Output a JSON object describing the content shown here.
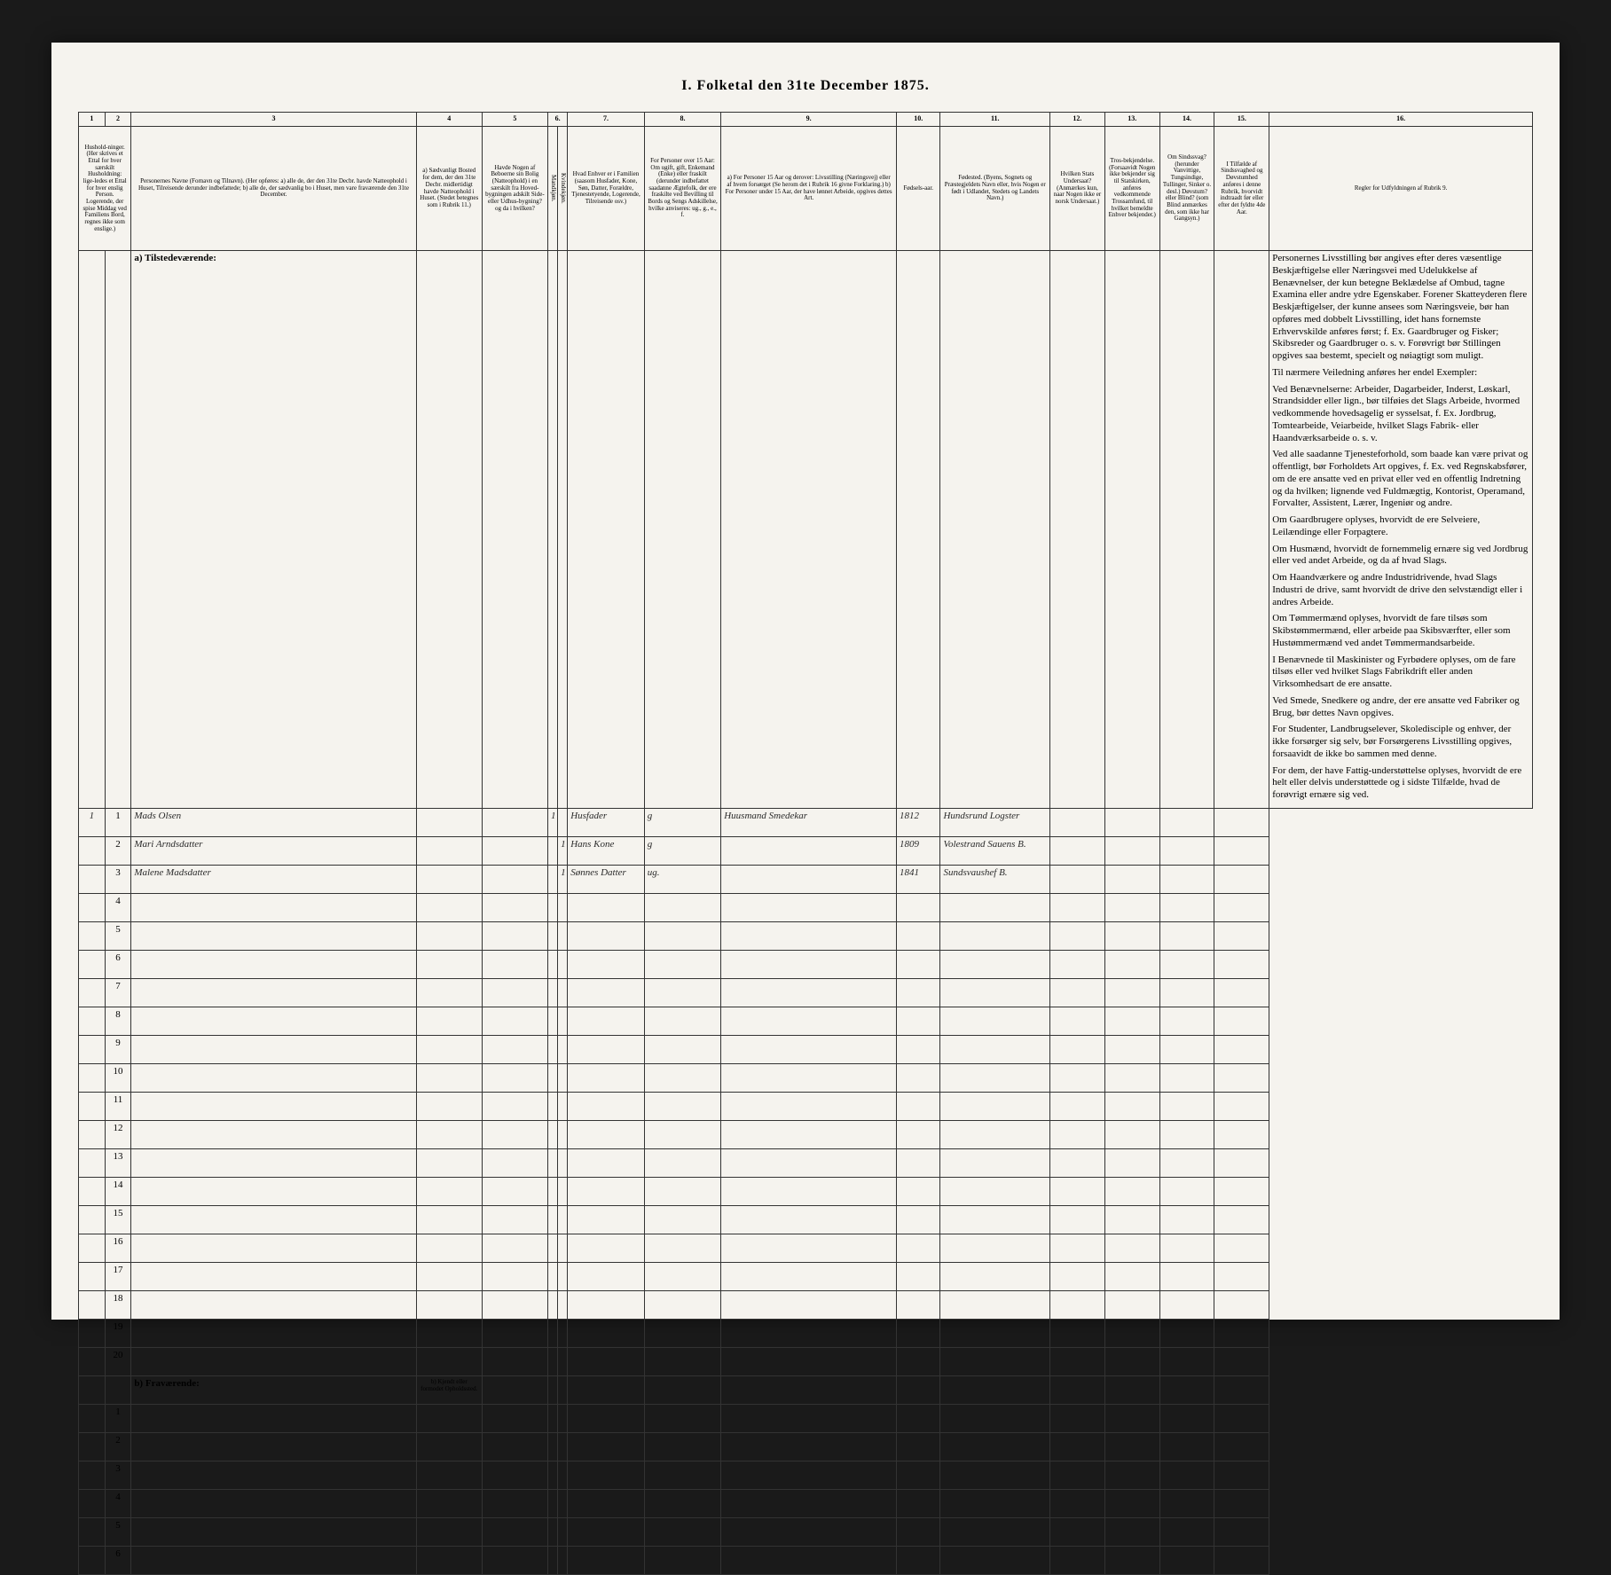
{
  "title": "I. Folketal den 31te December 1875.",
  "columnNumbers": [
    "1",
    "2",
    "3",
    "4",
    "5",
    "6.",
    "7.",
    "8.",
    "9.",
    "10.",
    "11.",
    "12.",
    "13.",
    "14.",
    "15.",
    "16."
  ],
  "headers": {
    "c1_2": "Hushold-ninger. (Her skrives et Ettal for hver særskilt Husholdning: lige-ledes et Ettal for hver enslig Person. Logerende, der spise Middag ved Familiens Bord, regnes ikke som enslige.)",
    "c3": "Personernes Navne (Fornavn og Tilnavn). (Her opføres: a) alle de, der den 31te Decbr. havde Natteophold i Huset, Tilreisende derunder indbefattede; b) alle de, der sædvanlig bo i Huset, men vare fraværende den 31te December.",
    "c4": "a) Sædvanligt Bosted for dem, der den 31te Decbr. midlertidigt havde Natteophold i Huset. (Stedet betegnes som i Rubrik 11.)",
    "c5": "Havde Nogen af Beboerne sin Bolig (Natteophold) i en særskilt fra Hoved-bygningen adskilt Side- eller Udhus-bygning? og da i hvilken?",
    "c6": "Kjøn. (Her sættes et Ettal i vedkommende Rubrik.)",
    "c6a": "Mandkjøn.",
    "c6b": "Kvindekjøn.",
    "c7": "Hvad Enhver er i Familien (saasom Husfader, Kone, Søn, Datter, Forældre, Tjenestetyende, Logerende, Tilreisende osv.)",
    "c8": "For Personer over 15 Aar: Om ugift, gift, Enkemand (Enke) eller fraskilt (derunder indbefattet saadanne Ægtefolk, der ere fraskilte ved Bevilling til Bords og Sengs Adskillelse, hvilke anviseres: ug., g., e., f.",
    "c9": "a) For Personer 15 Aar og derover: Livsstilling (Næringsvej) eller af hvem forsørget (Se herom det i Rubrik 16 givne Forklaring.) b) For Personer under 15 Aar, der have lønnet Arbeide, opgives dettes Art.",
    "c10": "Fødsels-aar.",
    "c11": "Fødested. (Byens, Sognets og Præstegjeldets Navn eller, hvis Nogen er født i Udlandet, Stedets og Landets Navn.)",
    "c12": "Hvilken Stats Undersaat? (Anmærkes kun, naar Nogen ikke er norsk Undersaat.)",
    "c13": "Tros-bekjendelse. (Forsaavidt Nogen ikke bekjender sig til Statskirken, anføres vedkommende Trossamfund, til hvilket bemeldte Enhver bekjender.)",
    "c14": "Om Sindssvag? (herunder Vanvittige, Tungsindige, Tullinger, Sinker o. desl.) Døvstum? eller Blind? (som Blind anmærkes den, som ikke har Gangsyn.)",
    "c15": "I Tilfælde af Sindssvaghed og Døvstumhed anføres i denne Rubrik, hvorvidt indtraadt før eller efter det fyldte 4de Aar.",
    "c16": "Regler for Udfyldningen af Rubrik 9."
  },
  "sectionA": "a) Tilstedeværende:",
  "sectionB": "b) Fraværende:",
  "sectionB_c4": "b) Kjendt eller formodet Opholdssted.",
  "rowsA": [
    {
      "hh": "1",
      "n": "1",
      "name": "Mads Olsen",
      "c4": "",
      "c5": "",
      "m": "1",
      "k": "",
      "fam": "Husfader",
      "civ": "g",
      "occ": "Huusmand Smedekar",
      "birth": "1812",
      "place": "Hundsrund Logster"
    },
    {
      "hh": "",
      "n": "2",
      "name": "Mari Arndsdatter",
      "c4": "",
      "c5": "",
      "m": "",
      "k": "1",
      "fam": "Hans Kone",
      "civ": "g",
      "occ": "",
      "birth": "1809",
      "place": "Volestrand Sauens B."
    },
    {
      "hh": "",
      "n": "3",
      "name": "Malene Madsdatter",
      "c4": "",
      "c5": "",
      "m": "",
      "k": "1",
      "fam": "Sønnes Datter",
      "civ": "ug.",
      "occ": "",
      "birth": "1841",
      "place": "Sundsvaushef B."
    }
  ],
  "emptyRowsA": [
    "4",
    "5",
    "6",
    "7",
    "8",
    "9",
    "10",
    "11",
    "12",
    "13",
    "14",
    "15",
    "16",
    "17",
    "18",
    "19",
    "20"
  ],
  "emptyRowsB": [
    "1",
    "2",
    "3",
    "4",
    "5",
    "6"
  ],
  "rules": [
    "Personernes Livsstilling bør angives efter deres væsentlige Beskjæftigelse eller Næringsvei med Udelukkelse af Benævnelser, der kun betegne Beklædelse af Ombud, tagne Examina eller andre ydre Egenskaber. Forener Skatteyderen flere Beskjæftigelser, der kunne ansees som Næringsveie, bør han opføres med dobbelt Livsstilling, idet hans fornemste Erhvervskilde anføres først; f. Ex. Gaardbruger og Fisker; Skibsreder og Gaardbruger o. s. v. Forøvrigt bør Stillingen opgives saa bestemt, specielt og nøiagtigt som muligt.",
    "Til nærmere Veiledning anføres her endel Exempler:",
    "Ved Benævnelserne: Arbeider, Dagarbeider, Inderst, Løskarl, Strandsidder eller lign., bør tilføies det Slags Arbeide, hvormed vedkommende hovedsagelig er sysselsat, f. Ex. Jordbrug, Tomtearbeide, Veiarbeide, hvilket Slags Fabrik- eller Haandværksarbeide o. s. v.",
    "Ved alle saadanne Tjenesteforhold, som baade kan være privat og offentligt, bør Forholdets Art opgives, f. Ex. ved Regnskabsfører, om de ere ansatte ved en privat eller ved en offentlig Indretning og da hvilken; lignende ved Fuldmægtig, Kontorist, Operamand, Forvalter, Assistent, Lærer, Ingeniør og andre.",
    "Om Gaardbrugere oplyses, hvorvidt de ere Selveiere, Leilændinge eller Forpagtere.",
    "Om Husmænd, hvorvidt de fornemmelig ernære sig ved Jordbrug eller ved andet Arbeide, og da af hvad Slags.",
    "Om Haandværkere og andre Industridrivende, hvad Slags Industri de drive, samt hvorvidt de drive den selvstændigt eller i andres Arbeide.",
    "Om Tømmermænd oplyses, hvorvidt de fare tilsøs som Skibstømmermænd, eller arbeide paa Skibsværfter, eller som Hustømmermænd ved andet Tømmermandsarbeide.",
    "I Benævnede til Maskinister og Fyrbødere oplyses, om de fare tilsøs eller ved hvilket Slags Fabrikdrift eller anden Virksomhedsart de ere ansatte.",
    "Ved Smede, Snedkere og andre, der ere ansatte ved Fabriker og Brug, bør dettes Navn opgives.",
    "For Studenter, Landbrugselever, Skoledisciple og enhver, der ikke forsørger sig selv, bør Forsørgerens Livsstilling opgives, forsaavidt de ikke bo sammen med denne.",
    "For dem, der have Fattig-understøttelse oplyses, hvorvidt de ere helt eller delvis understøttede og i sidste Tilfælde, hvad de forøvrigt ernære sig ved."
  ]
}
